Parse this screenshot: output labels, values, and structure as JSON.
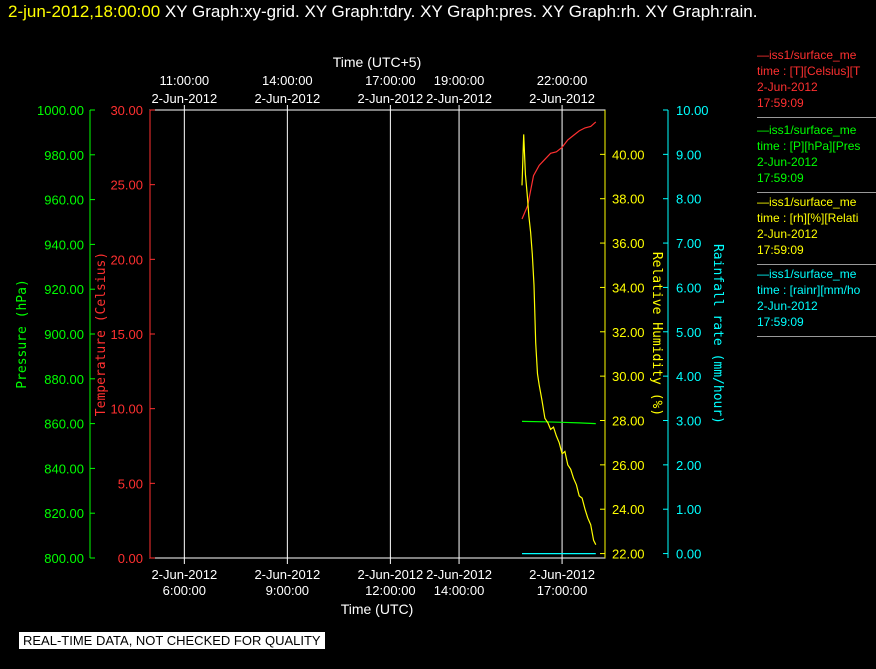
{
  "header": {
    "timestamp": "2-jun-2012,18:00:00",
    "graphs": [
      "XY Graph:xy-grid.",
      "XY Graph:tdry.",
      "XY Graph:pres.",
      "XY Graph:rh.",
      "XY Graph:rain."
    ]
  },
  "footer_note": "REAL-TIME DATA, NOT CHECKED FOR QUALITY",
  "legend": [
    {
      "color": "#ff3030",
      "line1": "—iss1/surface_me",
      "line2": "time : [T][Celsius][T",
      "line3": "2-Jun-2012",
      "line4": "17:59:09"
    },
    {
      "color": "#00ff00",
      "line1": "—iss1/surface_me",
      "line2": "time : [P][hPa][Pres",
      "line3": "2-Jun-2012",
      "line4": "17:59:09"
    },
    {
      "color": "#ffff00",
      "line1": "—iss1/surface_me",
      "line2": "time : [rh][%][Relati",
      "line3": "2-Jun-2012",
      "line4": "17:59:09"
    },
    {
      "color": "#00ffff",
      "line1": "—iss1/surface_me",
      "line2": "time : [rainr][mm/ho",
      "line3": "2-Jun-2012",
      "line4": "17:59:09"
    }
  ],
  "chart_data": {
    "type": "line",
    "x_bottom": {
      "label": "Time (UTC)",
      "range": [
        "2-Jun-2012 05:00",
        "2-Jun-2012 18:15"
      ],
      "ticks": [
        {
          "time": "06:00",
          "date": "2-Jun-2012",
          "label": "6:00:00"
        },
        {
          "time": "09:00",
          "date": "2-Jun-2012",
          "label": "9:00:00"
        },
        {
          "time": "12:00",
          "date": "2-Jun-2012",
          "label": "12:00:00"
        },
        {
          "time": "14:00",
          "date": "2-Jun-2012",
          "label": "14:00:00"
        },
        {
          "time": "17:00",
          "date": "2-Jun-2012",
          "label": "17:00:00"
        }
      ]
    },
    "x_top": {
      "label": "Time (UTC+5)",
      "ticks": [
        {
          "time": "06:00",
          "date": "2-Jun-2012",
          "label": "11:00:00"
        },
        {
          "time": "09:00",
          "date": "2-Jun-2012",
          "label": "14:00:00"
        },
        {
          "time": "12:00",
          "date": "2-Jun-2012",
          "label": "17:00:00"
        },
        {
          "time": "14:00",
          "date": "2-Jun-2012",
          "label": "19:00:00"
        },
        {
          "time": "17:00",
          "date": "2-Jun-2012",
          "label": "22:00:00"
        }
      ]
    },
    "grid_x": [
      "06:00",
      "09:00",
      "12:00",
      "14:00",
      "17:00"
    ],
    "y_axes": [
      {
        "key": "pressure",
        "label": "Pressure (hPa)",
        "color": "#00ff00",
        "range": [
          800,
          1000
        ],
        "ticks": [
          "800.00",
          "820.00",
          "840.00",
          "860.00",
          "880.00",
          "900.00",
          "920.00",
          "940.00",
          "960.00",
          "980.00",
          "1000.00"
        ]
      },
      {
        "key": "temperature",
        "label": "Temperature (Celsius)",
        "color": "#ff3030",
        "range": [
          0,
          30
        ],
        "ticks": [
          "0.00",
          "5.00",
          "10.00",
          "15.00",
          "20.00",
          "25.00",
          "30.00"
        ]
      },
      {
        "key": "rh",
        "label": "Relative Humidity (%)",
        "color": "#ffff00",
        "range": [
          21.8,
          42
        ],
        "ticks": [
          "22.00",
          "24.00",
          "26.00",
          "28.00",
          "30.00",
          "32.00",
          "34.00",
          "36.00",
          "38.00",
          "40.00"
        ]
      },
      {
        "key": "rain",
        "label": "Rainfall rate (mm/hour)",
        "color": "#00ffff",
        "range": [
          -0.1,
          10
        ],
        "ticks": [
          "0.00",
          "1.00",
          "2.00",
          "3.00",
          "4.00",
          "5.00",
          "6.00",
          "7.00",
          "8.00",
          "9.00",
          "10.00"
        ]
      }
    ],
    "series": [
      {
        "axis": "temperature",
        "color": "#ff3030",
        "x": [
          "15:50",
          "16:00",
          "16:10",
          "16:20",
          "16:30",
          "16:40",
          "16:50",
          "17:00",
          "17:10",
          "17:20",
          "17:30",
          "17:40",
          "17:50",
          "17:59"
        ],
        "y": [
          22.7,
          23.6,
          25.6,
          26.3,
          26.7,
          27.1,
          27.2,
          27.5,
          28.0,
          28.3,
          28.6,
          28.8,
          28.9,
          29.2
        ]
      },
      {
        "axis": "pressure",
        "color": "#00ff00",
        "x": [
          "15:50",
          "16:30",
          "17:00",
          "17:30",
          "17:59"
        ],
        "y": [
          861.0,
          860.8,
          860.6,
          860.3,
          860.0
        ]
      },
      {
        "axis": "rh",
        "color": "#ffff00",
        "x": [
          "15:50",
          "15:53",
          "15:56",
          "15:59",
          "16:02",
          "16:05",
          "16:08",
          "16:11",
          "16:14",
          "16:17",
          "16:20",
          "16:25",
          "16:30",
          "16:35",
          "16:40",
          "16:45",
          "16:50",
          "16:55",
          "17:00",
          "17:05",
          "17:10",
          "17:15",
          "17:20",
          "17:25",
          "17:30",
          "17:35",
          "17:40",
          "17:45",
          "17:50",
          "17:55",
          "17:59"
        ],
        "y": [
          38.6,
          40.9,
          39.1,
          38.2,
          37.2,
          36.5,
          35.5,
          34.1,
          31.5,
          30.1,
          29.6,
          28.9,
          28.1,
          27.9,
          27.6,
          27.7,
          27.3,
          27.0,
          26.5,
          26.6,
          26.0,
          25.8,
          25.4,
          25.1,
          24.6,
          24.5,
          24.0,
          23.6,
          23.3,
          22.6,
          22.4
        ]
      },
      {
        "axis": "rain",
        "color": "#00ffff",
        "x": [
          "15:50",
          "17:59"
        ],
        "y": [
          0.0,
          0.0
        ]
      }
    ]
  }
}
